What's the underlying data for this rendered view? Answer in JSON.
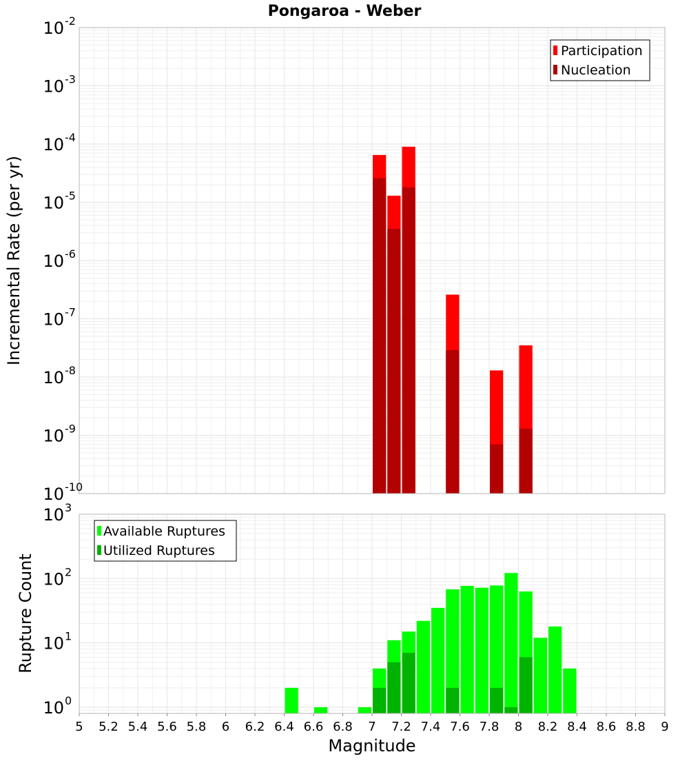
{
  "chart_data": [
    {
      "type": "bar",
      "title": "Pongaroa - Weber",
      "xlabel": "",
      "ylabel": "Incremental Rate (per yr)",
      "yscale": "log",
      "xlim": [
        5,
        9
      ],
      "ylim": [
        1e-10,
        0.01
      ],
      "grid": true,
      "legend_position": "top-right",
      "ytick_exponents": [
        "-10",
        "-9",
        "-8",
        "-7",
        "-6",
        "-5",
        "-4",
        "-3",
        "-2"
      ],
      "colors": {
        "Participation": "#ff0000",
        "Nucleation": "#b30000"
      },
      "series": [
        {
          "name": "Participation",
          "x": [
            7.05,
            7.15,
            7.25,
            7.55,
            7.85,
            8.05
          ],
          "values": [
            6.5e-05,
            1.3e-05,
            9e-05,
            2.6e-07,
            1.3e-08,
            3.5e-08
          ]
        },
        {
          "name": "Nucleation",
          "x": [
            7.05,
            7.15,
            7.25,
            7.55,
            7.85,
            8.05
          ],
          "values": [
            2.6e-05,
            3.5e-06,
            1.8e-05,
            2.9e-08,
            7e-10,
            1.3e-09
          ]
        }
      ]
    },
    {
      "type": "bar",
      "title": "",
      "xlabel": "Magnitude",
      "ylabel": "Rupture Count",
      "yscale": "log",
      "xlim": [
        5,
        9
      ],
      "ylim": [
        0.8,
        1000
      ],
      "grid": true,
      "legend_position": "top-left",
      "xticks": [
        "5",
        "5.2",
        "5.4",
        "5.6",
        "5.8",
        "6",
        "6.2",
        "6.4",
        "6.6",
        "6.8",
        "7",
        "7.2",
        "7.4",
        "7.6",
        "7.8",
        "8",
        "8.2",
        "8.4",
        "8.6",
        "8.8",
        "9"
      ],
      "ytick_exponents": [
        "0",
        "1",
        "2",
        "3"
      ],
      "colors": {
        "Available Ruptures": "#00ff00",
        "Utilized Ruptures": "#00b300"
      },
      "series": [
        {
          "name": "Available Ruptures",
          "x": [
            6.45,
            6.65,
            6.95,
            7.05,
            7.15,
            7.25,
            7.35,
            7.45,
            7.55,
            7.65,
            7.75,
            7.85,
            7.95,
            8.05,
            8.15,
            8.25,
            8.35
          ],
          "values": [
            2,
            1,
            1,
            4,
            11,
            15,
            22,
            35,
            68,
            77,
            72,
            78,
            122,
            63,
            12,
            18,
            4
          ]
        },
        {
          "name": "Utilized Ruptures",
          "x": [
            7.05,
            7.15,
            7.25,
            7.55,
            7.85,
            7.95,
            8.05
          ],
          "values": [
            2,
            5,
            7,
            2,
            2,
            1,
            6
          ]
        }
      ]
    }
  ]
}
